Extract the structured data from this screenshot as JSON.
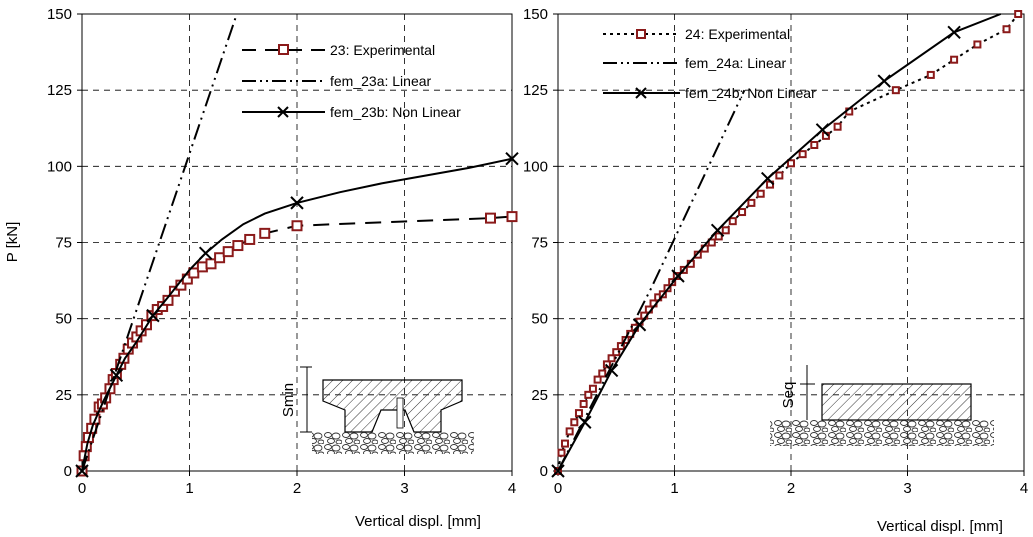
{
  "chart_data": [
    {
      "type": "line",
      "xlabel": "Vertical displ.  [mm]",
      "ylabel": "P [kN]",
      "xlim": [
        0,
        4
      ],
      "ylim": [
        0,
        150
      ],
      "xticks": [
        0,
        1,
        2,
        3,
        4
      ],
      "yticks": [
        0,
        25,
        50,
        75,
        100,
        125,
        150
      ],
      "grid": true,
      "legend_position": "top-right",
      "series": [
        {
          "name": "23: Experimental",
          "style": "dashed-square",
          "color": "#8b1a1a",
          "x": [
            0.0,
            0.02,
            0.04,
            0.06,
            0.09,
            0.12,
            0.16,
            0.19,
            0.22,
            0.26,
            0.29,
            0.32,
            0.36,
            0.39,
            0.43,
            0.47,
            0.51,
            0.55,
            0.6,
            0.65,
            0.7,
            0.75,
            0.8,
            0.86,
            0.92,
            0.98,
            1.04,
            1.12,
            1.2,
            1.28,
            1.36,
            1.45,
            1.56,
            1.7,
            2.0,
            3.8,
            4.0
          ],
          "y": [
            0,
            5,
            8,
            11,
            14,
            17,
            21,
            22,
            24,
            27,
            30,
            32,
            35,
            37,
            40,
            42,
            44,
            46,
            48,
            51,
            53,
            54,
            56,
            59,
            61,
            63,
            65,
            67,
            68,
            70,
            72,
            74,
            76,
            78,
            80.5,
            83,
            83.5
          ],
          "marker_count": 35
        },
        {
          "name": "fem_23a: Linear",
          "style": "dash-dot-dot",
          "color": "#000000",
          "x": [
            0.0,
            1.44
          ],
          "y": [
            0,
            150
          ]
        },
        {
          "name": "fem_23b: Non Linear",
          "style": "solid-x",
          "color": "#000000",
          "x": [
            0.0,
            0.05,
            0.1,
            0.2,
            0.3,
            0.4,
            0.5,
            0.66,
            0.8,
            1.0,
            1.15,
            1.3,
            1.5,
            1.7,
            2.0,
            2.4,
            2.8,
            3.2,
            3.6,
            4.0
          ],
          "y": [
            0,
            9,
            15,
            23,
            30,
            37,
            42,
            51,
            57,
            66,
            71.5,
            76,
            81,
            84.5,
            88,
            91.5,
            94.5,
            97,
            99.5,
            102.5
          ],
          "markers_x": [
            0.0,
            0.32,
            0.66,
            1.15,
            2.0,
            4.0
          ]
        }
      ],
      "inset": {
        "label": "Smin"
      }
    },
    {
      "type": "line",
      "xlabel": "Vertical displ. [mm]",
      "ylabel": "",
      "xlim": [
        0,
        4
      ],
      "ylim": [
        0,
        150
      ],
      "xticks": [
        0,
        1,
        2,
        3,
        4
      ],
      "yticks": [
        0,
        25,
        50,
        75,
        100,
        125,
        150
      ],
      "grid": true,
      "legend_position": "top-left",
      "series": [
        {
          "name": "24: Experimental",
          "style": "dotted-square",
          "color": "#8b1a1a",
          "x": [
            0.0,
            0.03,
            0.06,
            0.1,
            0.14,
            0.18,
            0.22,
            0.26,
            0.3,
            0.34,
            0.38,
            0.42,
            0.46,
            0.5,
            0.54,
            0.58,
            0.62,
            0.66,
            0.7,
            0.74,
            0.78,
            0.82,
            0.86,
            0.9,
            0.94,
            0.98,
            1.02,
            1.08,
            1.14,
            1.2,
            1.26,
            1.32,
            1.38,
            1.44,
            1.5,
            1.58,
            1.66,
            1.74,
            1.82,
            1.9,
            2.0,
            2.1,
            2.2,
            2.3,
            2.4,
            2.5,
            2.9,
            3.2,
            3.4,
            3.6,
            3.85,
            3.95
          ],
          "y": [
            0,
            6,
            9,
            13,
            16,
            19,
            22,
            25,
            27,
            30,
            32,
            35,
            37,
            39,
            41,
            43,
            45,
            47,
            49,
            51,
            53,
            55,
            57,
            58,
            60,
            62,
            64,
            66,
            68,
            71,
            73,
            75,
            77,
            79,
            82,
            85,
            88,
            91,
            94,
            97,
            101,
            104,
            107,
            110,
            113,
            118,
            125,
            130,
            135,
            140,
            145,
            150
          ],
          "marker_count": 50
        },
        {
          "name": "fem_24a: Linear",
          "style": "dash-dot-dot",
          "color": "#000000",
          "x": [
            0.0,
            0.8,
            1.6
          ],
          "y": [
            0,
            60,
            125
          ]
        },
        {
          "name": "fem_24b: Non Linear",
          "style": "solid-x",
          "color": "#000000",
          "x": [
            0.0,
            0.23,
            0.46,
            0.7,
            1.03,
            1.37,
            1.8,
            2.27,
            2.8,
            3.4,
            3.8
          ],
          "y": [
            0,
            16,
            33,
            48,
            64,
            79,
            96,
            112,
            128,
            144,
            152
          ],
          "markers_x": [
            0.0,
            0.23,
            0.46,
            0.7,
            1.03,
            1.37,
            1.8,
            2.27,
            2.8,
            3.4
          ]
        }
      ],
      "inset": {
        "label": "Seq"
      }
    }
  ]
}
